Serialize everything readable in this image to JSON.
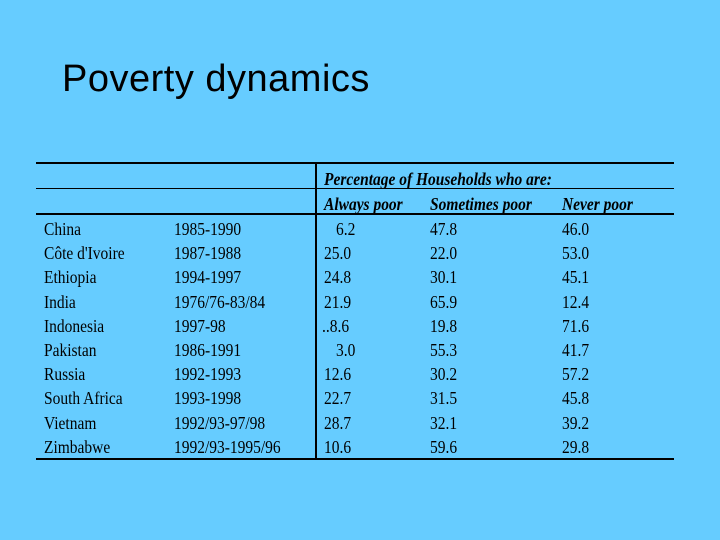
{
  "slide": {
    "title": "Poverty dynamics"
  },
  "table": {
    "group_header": "Percentage of Households who are:",
    "columns": [
      "Always poor",
      "Sometimes poor",
      "Never poor"
    ],
    "rows": [
      {
        "country": "China",
        "period": "1985-1990",
        "always": "6.2",
        "sometimes": "47.8",
        "never": "46.0"
      },
      {
        "country": "Côte d'Ivoire",
        "period": "1987-1988",
        "always": "25.0",
        "sometimes": "22.0",
        "never": "53.0"
      },
      {
        "country": "Ethiopia",
        "period": "1994-1997",
        "always": "24.8",
        "sometimes": "30.1",
        "never": "45.1"
      },
      {
        "country": "India",
        "period": "1976/76-83/84",
        "always": "21.9",
        "sometimes": "65.9",
        "never": "12.4"
      },
      {
        "country": "Indonesia",
        "period": "1997-98",
        "always": "..8.6",
        "sometimes": "19.8",
        "never": "71.6"
      },
      {
        "country": "Pakistan",
        "period": "1986-1991",
        "always": "3.0",
        "sometimes": "55.3",
        "never": "41.7"
      },
      {
        "country": "Russia",
        "period": "1992-1993",
        "always": "12.6",
        "sometimes": "30.2",
        "never": "57.2"
      },
      {
        "country": "South Africa",
        "period": "1993-1998",
        "always": "22.7",
        "sometimes": "31.5",
        "never": "45.8"
      },
      {
        "country": "Vietnam",
        "period": "1992/93-97/98",
        "always": "28.7",
        "sometimes": "32.1",
        "never": "39.2"
      },
      {
        "country": "Zimbabwe",
        "period": "1992/93-1995/96",
        "always": "10.6",
        "sometimes": "59.6",
        "never": "29.8"
      }
    ]
  }
}
